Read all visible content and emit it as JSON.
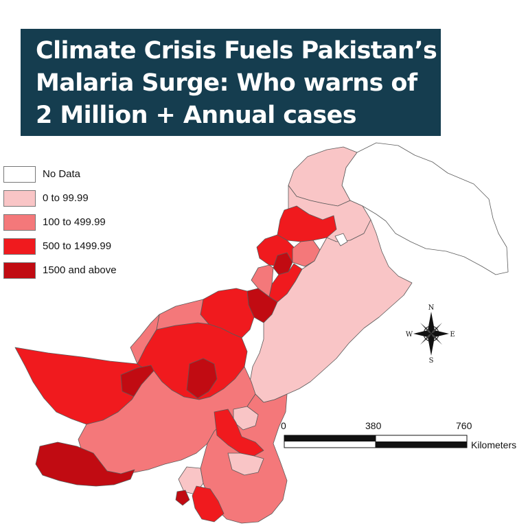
{
  "title": {
    "lines": [
      "Climate Crisis Fuels Pakistan’s",
      "Malaria Surge: Who warns of",
      "2 Million + Annual cases"
    ]
  },
  "legend": [
    {
      "label": "No Data",
      "color": "#ffffff"
    },
    {
      "label": "0 to 99.99",
      "color": "#f9c5c6"
    },
    {
      "label": "100 to 499.99",
      "color": "#f4787a"
    },
    {
      "label": "500 to 1499.99",
      "color": "#f01a1e"
    },
    {
      "label": "1500 and above",
      "color": "#c10b12"
    }
  ],
  "compass": {
    "n": "N",
    "s": "S",
    "e": "E",
    "w": "W"
  },
  "scale_bar": {
    "ticks": [
      "0",
      "380",
      "760"
    ],
    "unit": "Kilometers"
  },
  "colors": {
    "banner": "#153d4f",
    "boundary": "#5a5a5a"
  }
}
